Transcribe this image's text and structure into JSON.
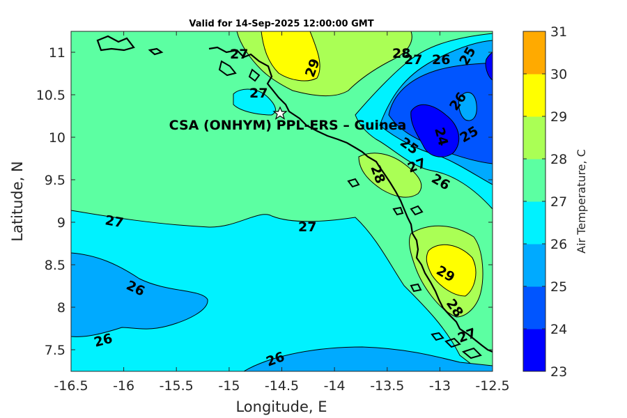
{
  "title": "Valid for 14-Sep-2025 12:00:00 GMT",
  "station_label": "CSA (ONHYM) PPL-ERS  – Guinea",
  "station_marker": "star",
  "xaxis": {
    "label": "Longitude, E",
    "ticks": [
      "-16.5",
      "-16",
      "-15.5",
      "-15",
      "-14.5",
      "-14",
      "-13.5",
      "-13",
      "-12.5"
    ]
  },
  "yaxis": {
    "label": "Latitude, N",
    "ticks": [
      "7.5",
      "8",
      "8.5",
      "9",
      "9.5",
      "10",
      "10.5",
      "11"
    ]
  },
  "colorbar": {
    "label": "Air Temperature, C",
    "ticks": [
      "23",
      "24",
      "25",
      "26",
      "27",
      "28",
      "29",
      "30",
      "31"
    ],
    "colors": [
      "#0000ff",
      "#0055ff",
      "#00aaff",
      "#00f2ff",
      "#5cffa2",
      "#aaff55",
      "#ffff00",
      "#ffaa00",
      "#ff5500"
    ]
  },
  "contour_labels": [
    "27",
    "28",
    "29",
    "27",
    "26",
    "25",
    "26",
    "24",
    "25",
    "25",
    "27",
    "28",
    "27",
    "26",
    "27",
    "27",
    "26",
    "26",
    "26",
    "29",
    "28",
    "27"
  ],
  "chart_data": {
    "type": "heatmap",
    "title": "Valid for 14-Sep-2025 12:00:00 GMT",
    "xlabel": "Longitude, E",
    "ylabel": "Latitude, N",
    "xlim": [
      -16.5,
      -12.5
    ],
    "ylim": [
      7.25,
      11.25
    ],
    "colorbar_label": "Air Temperature, C",
    "clim": [
      23,
      31
    ],
    "levels": [
      23,
      24,
      25,
      26,
      27,
      28,
      29,
      30,
      31
    ],
    "station": {
      "name": "CSA (ONHYM) PPL-ERS  – Guinea",
      "lon": -14.5,
      "lat": 10.28
    },
    "regions": [
      {
        "band": [
          27,
          28
        ],
        "description": "offshore northwest and central zone"
      },
      {
        "band": [
          26,
          27
        ],
        "description": "southwest ocean south of 9.1N"
      },
      {
        "band": [
          25,
          26
        ],
        "description": "southwest pocket near -16.3 to -15.2, 7.7-8.6N and southern edge"
      },
      {
        "band": [
          28,
          29
        ],
        "description": "coast near -14.3, 10.8-11.2N; around -13.4, 9.6N; around -12.9, 8.6N"
      },
      {
        "band": [
          29,
          30
        ],
        "description": "peak near -14.3, 11.1N and -12.9, 8.6N"
      },
      {
        "band": [
          24,
          25
        ],
        "description": "inland northeast -13.2 to -12.5, 9.8-10.7N"
      },
      {
        "band": [
          23,
          24
        ],
        "description": "minimum near -12.9, 10.1N"
      }
    ]
  }
}
